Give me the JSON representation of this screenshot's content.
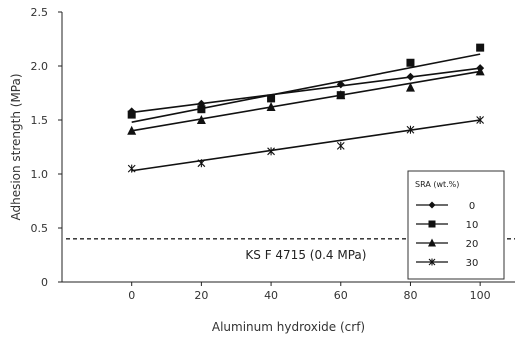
{
  "chart_data": {
    "type": "scatter",
    "xlabel": "Aluminum hydroxide (crf)",
    "ylabel": "Adhesion strength (MPa)",
    "xlim": [
      -20,
      110
    ],
    "ylim": [
      0,
      2.5
    ],
    "x_ticks": [
      0,
      20,
      40,
      60,
      80,
      100
    ],
    "y_ticks": [
      0,
      0.5,
      1.0,
      1.5,
      2.0,
      2.5
    ],
    "y_tick_labels": [
      "0",
      "0.5",
      "1.0",
      "1.5",
      "2.0",
      "2.5"
    ],
    "grid": false,
    "legend": {
      "title": "SRA (wt.%)",
      "position": "right"
    },
    "x": [
      0,
      20,
      40,
      60,
      80,
      100
    ],
    "series": [
      {
        "name": "0",
        "marker": "diamond",
        "values": [
          1.58,
          1.65,
          1.7,
          1.83,
          1.9,
          1.98
        ],
        "trend": [
          1.57,
          1.98
        ]
      },
      {
        "name": "10",
        "marker": "square",
        "values": [
          1.55,
          1.6,
          1.7,
          1.73,
          2.03,
          2.17
        ],
        "trend": [
          1.48,
          2.11
        ]
      },
      {
        "name": "20",
        "marker": "triangle",
        "values": [
          1.4,
          1.5,
          1.62,
          1.73,
          1.8,
          1.95
        ],
        "trend": [
          1.4,
          1.95
        ]
      },
      {
        "name": "30",
        "marker": "x",
        "values": [
          1.05,
          1.1,
          1.21,
          1.26,
          1.41,
          1.5
        ],
        "trend": [
          1.03,
          1.5
        ]
      }
    ],
    "reference_line": {
      "y": 0.4,
      "label": "KS F 4715 (0.4 MPa)",
      "style": "dashed"
    }
  }
}
